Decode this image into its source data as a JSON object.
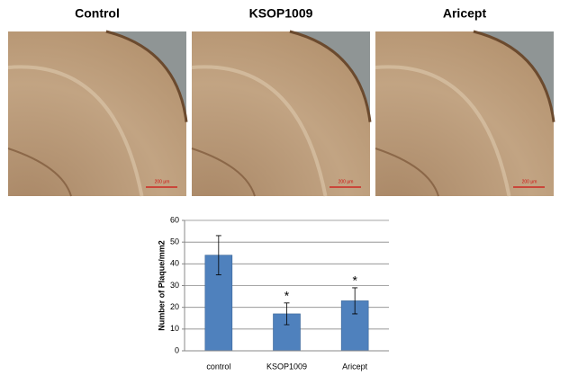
{
  "panels": [
    {
      "title": "Control",
      "scale_bar": "200 μm"
    },
    {
      "title": "KSOP1009",
      "scale_bar": "200 μm"
    },
    {
      "title": "Aricept",
      "scale_bar": "200 μm"
    }
  ],
  "chart_data": {
    "type": "bar",
    "y_label": "Number of Plaque/mm2",
    "categories": [
      "control",
      "KSOP1009",
      "Aricept"
    ],
    "values": [
      44,
      17,
      23
    ],
    "errors": [
      9,
      5,
      6
    ],
    "significance": [
      null,
      "*",
      "*"
    ],
    "color": "#4f81bd",
    "ylim": [
      0,
      60
    ],
    "yticks": [
      0,
      10,
      20,
      30,
      40,
      50,
      60
    ],
    "grid": true
  }
}
